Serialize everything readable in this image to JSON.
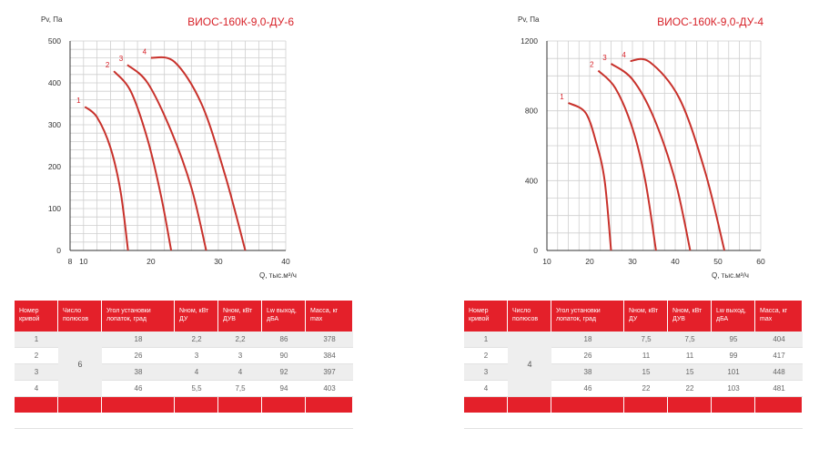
{
  "chart_data": [
    {
      "type": "line",
      "title": "ВИОС-160К-9,0-ДУ-6",
      "ylabel": "Pv, Па",
      "xlabel": "Q, тыс.м³/ч",
      "x_ticks": [
        "8",
        "10",
        "20",
        "30",
        "40"
      ],
      "y_ticks": [
        "0",
        "100",
        "200",
        "300",
        "400",
        "500"
      ],
      "ylim": [
        0,
        500
      ],
      "grid": true,
      "series": [
        {
          "name": "1",
          "points": [
            [
              10.2,
              343
            ],
            [
              12,
              318
            ],
            [
              14,
              245
            ],
            [
              15.5,
              140
            ],
            [
              16.6,
              0
            ]
          ]
        },
        {
          "name": "2",
          "points": [
            [
              14.5,
              428
            ],
            [
              17,
              380
            ],
            [
              19.5,
              265
            ],
            [
              21.5,
              130
            ],
            [
              23,
              0
            ]
          ]
        },
        {
          "name": "3",
          "points": [
            [
              16.5,
              443
            ],
            [
              19.5,
              400
            ],
            [
              23,
              285
            ],
            [
              26,
              150
            ],
            [
              28.2,
              0
            ]
          ]
        },
        {
          "name": "4",
          "points": [
            [
              20,
              460
            ],
            [
              23.5,
              450
            ],
            [
              27.5,
              350
            ],
            [
              31,
              180
            ],
            [
              34,
              0
            ]
          ]
        }
      ]
    },
    {
      "type": "line",
      "title": "ВИОС-160К-9,0-ДУ-4",
      "ylabel": "Pv, Па",
      "xlabel": "Q, тыс.м³/ч",
      "x_ticks": [
        "10",
        "20",
        "30",
        "40",
        "50",
        "60"
      ],
      "y_ticks": [
        "0",
        "400",
        "800",
        "1200"
      ],
      "ylim": [
        0,
        1200
      ],
      "grid": true,
      "series": [
        {
          "name": "1",
          "points": [
            [
              15,
              845
            ],
            [
              19,
              790
            ],
            [
              21.5,
              620
            ],
            [
              23.5,
              400
            ],
            [
              25,
              0
            ]
          ]
        },
        {
          "name": "2",
          "points": [
            [
              22,
              1030
            ],
            [
              26,
              930
            ],
            [
              30,
              700
            ],
            [
              33,
              400
            ],
            [
              35.5,
              0
            ]
          ]
        },
        {
          "name": "3",
          "points": [
            [
              25,
              1070
            ],
            [
              30,
              980
            ],
            [
              35,
              760
            ],
            [
              40,
              400
            ],
            [
              43.5,
              0
            ]
          ]
        },
        {
          "name": "4",
          "points": [
            [
              29.5,
              1085
            ],
            [
              34,
              1080
            ],
            [
              41,
              870
            ],
            [
              47,
              450
            ],
            [
              51.5,
              0
            ]
          ]
        }
      ]
    }
  ],
  "tables": [
    {
      "headers": [
        "Номер кривой",
        "Число полюсов",
        "Угол установки лопаток, град",
        "Nном, кВт ДУ",
        "Nном, кВт ДУВ",
        "Lw выход, дБА",
        "Масса, кг max"
      ],
      "poles": "6",
      "rows": [
        [
          "1",
          "18",
          "2,2",
          "2,2",
          "86",
          "378"
        ],
        [
          "2",
          "26",
          "3",
          "3",
          "90",
          "384"
        ],
        [
          "3",
          "38",
          "4",
          "4",
          "92",
          "397"
        ],
        [
          "4",
          "46",
          "5,5",
          "7,5",
          "94",
          "403"
        ]
      ]
    },
    {
      "headers": [
        "Номер кривой",
        "Число полюсов",
        "Угол установки лопаток, град",
        "Nном, кВт ДУ",
        "Nном, кВт ДУВ",
        "Lw выход, дБА",
        "Масса, кг max"
      ],
      "poles": "4",
      "rows": [
        [
          "1",
          "18",
          "7,5",
          "7,5",
          "95",
          "404"
        ],
        [
          "2",
          "26",
          "11",
          "11",
          "99",
          "417"
        ],
        [
          "3",
          "38",
          "15",
          "15",
          "101",
          "448"
        ],
        [
          "4",
          "46",
          "22",
          "22",
          "103",
          "481"
        ]
      ]
    }
  ]
}
